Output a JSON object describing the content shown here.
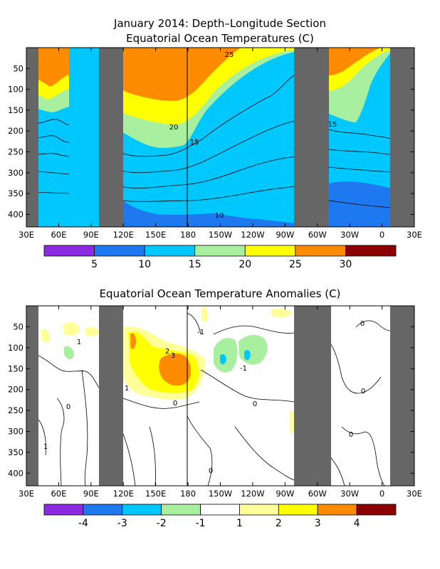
{
  "chart_data": [
    {
      "type": "heatmap",
      "title_line1": "January 2014: Depth–Longitude Section",
      "title_line2": "Equatorial Ocean Temperatures (C)",
      "x_tick_labels": [
        "30E",
        "60E",
        "90E",
        "120E",
        "150E",
        "180",
        "150W",
        "120W",
        "90W",
        "60W",
        "30W",
        "0",
        "30E"
      ],
      "y_tick_labels": [
        "50",
        "100",
        "150",
        "200",
        "250",
        "300",
        "350",
        "400"
      ],
      "y_ticks": [
        50,
        100,
        150,
        200,
        250,
        300,
        350,
        400
      ],
      "ylim": [
        0,
        430
      ],
      "x_range_deg": [
        30,
        390
      ],
      "land_mask_deg": [
        [
          30,
          44
        ],
        [
          97,
          121
        ],
        [
          285,
          320
        ],
        [
          359,
          390
        ]
      ],
      "colorbar_labels": [
        "5",
        "10",
        "15",
        "20",
        "25",
        "30"
      ],
      "colorbar_colors": [
        "#8a2be2",
        "#1e78f0",
        "#00c8ff",
        "#a8f0a0",
        "#ffff00",
        "#ff8c00",
        "#8b0000"
      ],
      "contour_labels": [
        "25",
        "20",
        "15",
        "15",
        "10"
      ]
    },
    {
      "type": "heatmap",
      "title": "Equatorial Ocean Temperature Anomalies (C)",
      "x_tick_labels": [
        "30E",
        "60E",
        "90E",
        "120E",
        "150E",
        "180",
        "150W",
        "120W",
        "90W",
        "60W",
        "30W",
        "0",
        "30E"
      ],
      "y_tick_labels": [
        "50",
        "100",
        "150",
        "200",
        "250",
        "300",
        "350",
        "400"
      ],
      "y_ticks": [
        50,
        100,
        150,
        200,
        250,
        300,
        350,
        400
      ],
      "ylim": [
        0,
        430
      ],
      "x_range_deg": [
        30,
        390
      ],
      "land_mask_deg": [
        [
          30,
          44
        ],
        [
          97,
          121
        ],
        [
          285,
          320
        ],
        [
          359,
          390
        ]
      ],
      "colorbar_labels": [
        "-4",
        "-3",
        "-2",
        "-1",
        "1",
        "2",
        "3",
        "4"
      ],
      "colorbar_colors": [
        "#8a2be2",
        "#1e78f0",
        "#00c8ff",
        "#a8f0a0",
        "#ffffff",
        "#ffff99",
        "#ffff00",
        "#ff8c00",
        "#8b0000"
      ],
      "contour_labels": [
        "2",
        "3",
        "1",
        "0",
        "0",
        "0",
        "-1",
        "-1",
        "1",
        "0",
        "0",
        "0",
        "1",
        "0"
      ]
    }
  ]
}
